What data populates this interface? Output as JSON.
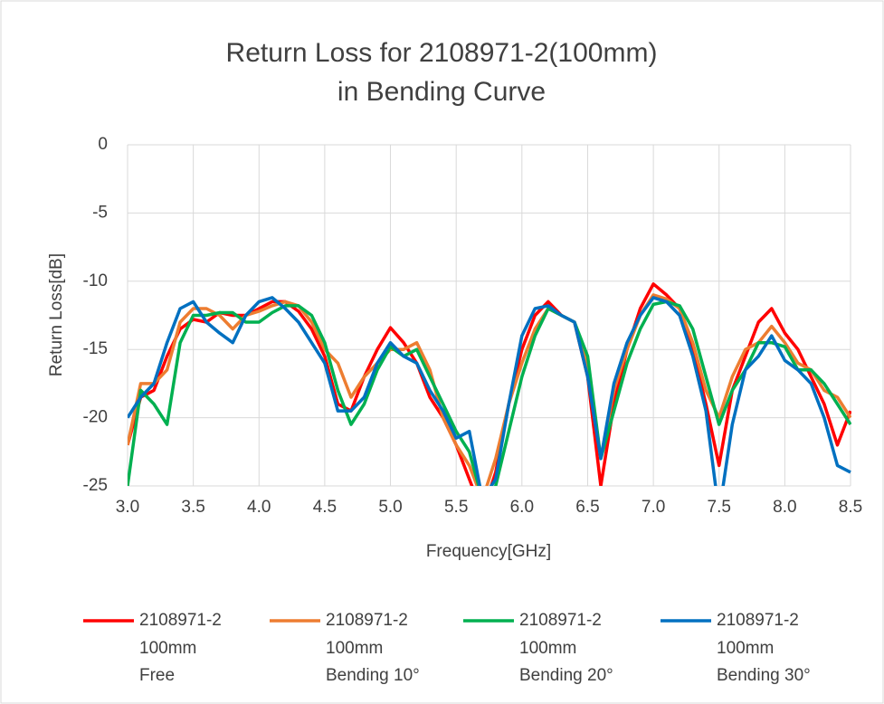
{
  "chart_data": {
    "type": "line",
    "title": "Return Loss for 2108971-2(100mm)",
    "subtitle": "in Bending Curve",
    "x_label": "Frequency[GHz]",
    "y_label": "Return Loss[dB]",
    "x": [
      3.0,
      3.1,
      3.2,
      3.3,
      3.4,
      3.5,
      3.6,
      3.7,
      3.8,
      3.9,
      4.0,
      4.1,
      4.2,
      4.3,
      4.4,
      4.5,
      4.6,
      4.7,
      4.8,
      4.9,
      5.0,
      5.1,
      5.2,
      5.3,
      5.4,
      5.5,
      5.6,
      5.7,
      5.8,
      5.9,
      6.0,
      6.1,
      6.2,
      6.3,
      6.4,
      6.5,
      6.6,
      6.7,
      6.8,
      6.9,
      7.0,
      7.1,
      7.2,
      7.3,
      7.4,
      7.5,
      7.6,
      7.7,
      7.8,
      7.9,
      8.0,
      8.1,
      8.2,
      8.3,
      8.4,
      8.5
    ],
    "series": [
      {
        "name": "2108971-2\n100mm\nFree",
        "color": "#ff0000",
        "values": [
          -22,
          -18.5,
          -18,
          -15.5,
          -13.5,
          -12.8,
          -13,
          -12.3,
          -12.5,
          -12.5,
          -12,
          -11.5,
          -11.5,
          -12.2,
          -13.5,
          -15.5,
          -19,
          -19.5,
          -17,
          -15,
          -13.4,
          -14.5,
          -16,
          -18.5,
          -20,
          -22,
          -24.5,
          -27,
          -24,
          -19,
          -15,
          -12.5,
          -11.5,
          -12.5,
          -13,
          -17,
          -25,
          -19,
          -15,
          -12,
          -10.2,
          -11,
          -12,
          -15,
          -19,
          -23.5,
          -18,
          -15.5,
          -13,
          -12,
          -13.8,
          -15,
          -17,
          -19,
          -22,
          -19.5
        ]
      },
      {
        "name": "2108971-2\n100mm\nBending 10°",
        "color": "#ed7d31",
        "values": [
          -22,
          -17.5,
          -17.5,
          -16.5,
          -13,
          -12,
          -12,
          -12.5,
          -13.5,
          -12.5,
          -12.2,
          -11.8,
          -11.5,
          -11.8,
          -13,
          -15,
          -16,
          -18.5,
          -17,
          -16,
          -15,
          -15,
          -14.5,
          -16.5,
          -20,
          -22,
          -23.5,
          -26,
          -23,
          -19,
          -16,
          -13.5,
          -12,
          -12.5,
          -13,
          -16,
          -23,
          -18,
          -15,
          -12.5,
          -11,
          -11.3,
          -12,
          -14.5,
          -18,
          -20,
          -17,
          -15,
          -14.5,
          -13.3,
          -14.5,
          -16,
          -16.5,
          -18,
          -18.5,
          -20
        ]
      },
      {
        "name": "2108971-2\n100mm\nBending 20°",
        "color": "#00b050",
        "values": [
          -25,
          -18,
          -19,
          -20.5,
          -14.5,
          -12.5,
          -12.5,
          -12.3,
          -12.3,
          -13,
          -13,
          -12.3,
          -11.8,
          -11.8,
          -12.5,
          -14.5,
          -18,
          -20.5,
          -19,
          -16.5,
          -14.8,
          -15.5,
          -15,
          -17,
          -19,
          -21,
          -22.5,
          -26,
          -25,
          -21,
          -17,
          -14,
          -12,
          -12.5,
          -13,
          -15.5,
          -23,
          -19.5,
          -16,
          -13.5,
          -11.7,
          -11.5,
          -11.8,
          -13.5,
          -17,
          -20.5,
          -18,
          -16.5,
          -14.5,
          -14.5,
          -14.8,
          -16.5,
          -16.5,
          -17.5,
          -19,
          -20.5
        ]
      },
      {
        "name": "2108971-2\n100mm\nBending 30°",
        "color": "#0070c0",
        "values": [
          -20,
          -18.5,
          -17.5,
          -14.5,
          -12,
          -11.5,
          -13,
          -13.8,
          -14.5,
          -12.5,
          -11.5,
          -11.2,
          -12,
          -13,
          -14.5,
          -16,
          -19.5,
          -19.5,
          -18.5,
          -16,
          -14.5,
          -15.5,
          -16,
          -18,
          -19.5,
          -21.5,
          -21,
          -26,
          -24.5,
          -19,
          -14,
          -12,
          -11.8,
          -12.5,
          -13,
          -17,
          -23,
          -17.5,
          -14.5,
          -12.5,
          -11.2,
          -11.5,
          -12.5,
          -15.5,
          -19.5,
          -27,
          -20.5,
          -16.5,
          -15.5,
          -14,
          -15.8,
          -16.5,
          -17.5,
          -20,
          -23.5,
          -24
        ]
      }
    ],
    "xlim": [
      3.0,
      8.5
    ],
    "xticks": [
      {
        "value": 3,
        "label": "3.0"
      },
      3.5,
      {
        "value": 4,
        "label": "4.0"
      },
      4.5,
      {
        "value": 5,
        "label": "5.0"
      },
      5.5,
      {
        "value": 6,
        "label": "6.0"
      },
      6.5,
      {
        "value": 7,
        "label": "7.0"
      },
      7.5,
      {
        "value": 8,
        "label": "8.0"
      },
      8.5
    ],
    "ylim": [
      -25,
      0
    ],
    "yticks": [
      0,
      -5,
      -10,
      -15,
      -20,
      -25
    ],
    "grid": true,
    "legend": "bottom"
  }
}
